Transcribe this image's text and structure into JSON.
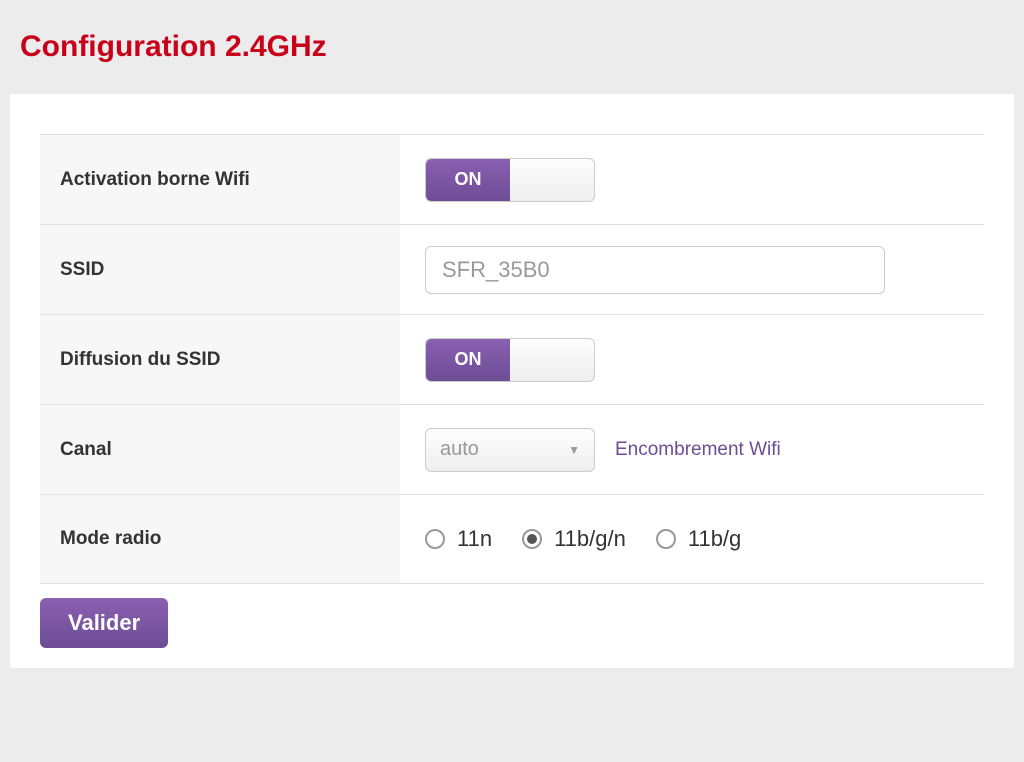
{
  "page": {
    "title": "Configuration 2.4GHz"
  },
  "colors": {
    "accent": "#6d4d96",
    "title": "#c9001a",
    "panel_bg": "#ffffff",
    "page_bg": "#ececec",
    "label_bg": "#f7f7f7",
    "border": "#e0e0e0"
  },
  "rows": {
    "activation": {
      "label": "Activation borne Wifi",
      "toggle_state": "ON"
    },
    "ssid": {
      "label": "SSID",
      "value": "SFR_35B0"
    },
    "diffusion": {
      "label": "Diffusion du SSID",
      "toggle_state": "ON"
    },
    "canal": {
      "label": "Canal",
      "selected": "auto",
      "link_text": "Encombrement Wifi"
    },
    "mode_radio": {
      "label": "Mode radio",
      "options": {
        "opt1": {
          "label": "11n",
          "checked": false
        },
        "opt2": {
          "label": "11b/g/n",
          "checked": true
        },
        "opt3": {
          "label": "11b/g",
          "checked": false
        }
      }
    }
  },
  "submit": {
    "label": "Valider"
  }
}
